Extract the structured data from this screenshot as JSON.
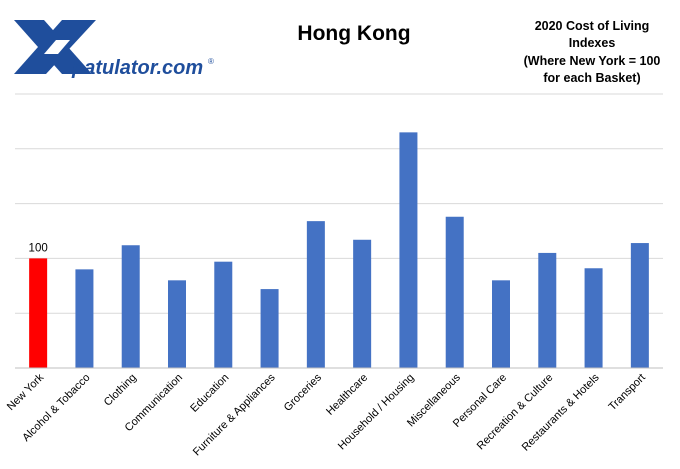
{
  "logo": {
    "text": "patulator.com",
    "mark": "®",
    "colors": {
      "x": "#1f4e9c",
      "text": "#1f4e9c"
    }
  },
  "header": {
    "note_lines": [
      "2020 Cost of Living",
      "Indexes",
      "(Where New York = 100",
      "for each Basket)"
    ]
  },
  "chart_data": {
    "type": "bar",
    "title": "Hong Kong",
    "categories": [
      "New York",
      "Alcohol & Tobacco",
      "Clothing",
      "Communication",
      "Education",
      "Furniture & Appliances",
      "Groceries",
      "Healthcare",
      "Household / Housing",
      "Miscellaneous",
      "Personal Care",
      "Recreation & Culture",
      "Restaurants & Hotels",
      "Transport"
    ],
    "values": [
      100,
      90,
      112,
      80,
      97,
      72,
      134,
      117,
      215,
      138,
      80,
      105,
      91,
      114
    ],
    "data_labels": [
      {
        "index": 0,
        "text": "100"
      }
    ],
    "ylim": [
      0,
      250
    ],
    "gridlines": true,
    "colors": {
      "highlight": "#ff0000",
      "bars": "#4472c4",
      "grid": "#d9d9d9",
      "axis": "#bfbfbf"
    }
  }
}
